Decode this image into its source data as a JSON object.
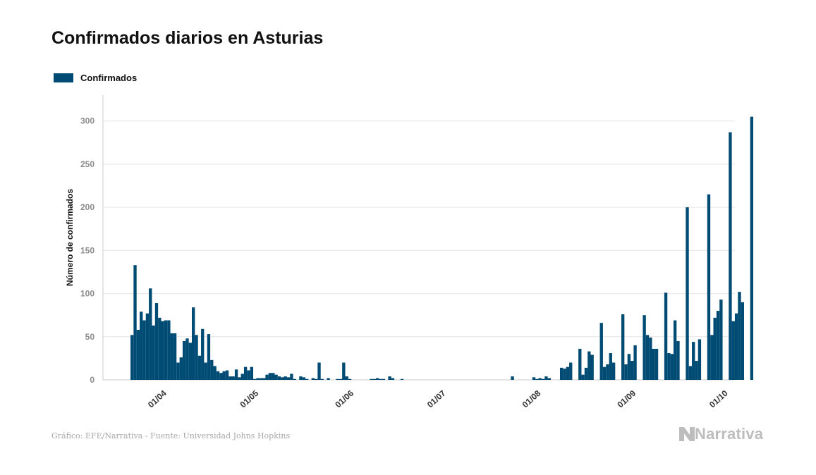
{
  "colors": {
    "bar": "#004b73",
    "grid": "#e6e6e6",
    "axis": "#cccccc",
    "brand": "#bdbdbd"
  },
  "source": "Gráfico: EFE/Narrativa - Fuente: Universidad Johns Hopkins",
  "brand": "Narrativa",
  "chart_data": {
    "type": "bar",
    "title": "Confirmados diarios en Asturias",
    "ylabel": "Número de confirmados",
    "xlabel": "",
    "ylim": [
      0,
      330
    ],
    "yticks": [
      0,
      50,
      100,
      150,
      200,
      250,
      300
    ],
    "grid": true,
    "legend_position": "top-left",
    "start_date": "2020-03-22",
    "xticks": [
      {
        "label": "01/04",
        "date": "2020-04-01"
      },
      {
        "label": "01/05",
        "date": "2020-05-01"
      },
      {
        "label": "01/06",
        "date": "2020-06-01"
      },
      {
        "label": "01/07",
        "date": "2020-07-01"
      },
      {
        "label": "01/08",
        "date": "2020-08-01"
      },
      {
        "label": "01/09",
        "date": "2020-09-01"
      },
      {
        "label": "01/10",
        "date": "2020-10-01"
      }
    ],
    "series": [
      {
        "name": "Confirmados",
        "values": [
          52,
          133,
          58,
          79,
          69,
          77,
          106,
          63,
          89,
          72,
          68,
          69,
          69,
          54,
          54,
          20,
          26,
          45,
          48,
          43,
          84,
          52,
          28,
          59,
          20,
          53,
          23,
          16,
          10,
          8,
          10,
          11,
          4,
          4,
          12,
          3,
          7,
          15,
          11,
          15,
          1,
          2,
          2,
          2,
          6,
          8,
          8,
          6,
          4,
          3,
          4,
          3,
          7,
          1,
          0,
          4,
          3,
          1,
          0,
          2,
          1,
          20,
          1,
          0,
          2,
          0,
          0,
          1,
          1,
          20,
          4,
          1,
          0,
          0,
          0,
          0,
          0,
          0,
          1,
          1,
          2,
          1,
          1,
          0,
          4,
          2,
          0,
          0,
          1,
          0,
          0,
          0,
          0,
          0,
          0,
          0,
          0,
          0,
          0,
          0,
          0,
          0,
          0,
          0,
          0,
          0,
          0,
          0,
          0,
          0,
          0,
          0,
          0,
          0,
          0,
          0,
          0,
          0,
          0,
          0,
          0,
          0,
          0,
          0,
          4,
          0,
          0,
          0,
          0,
          0,
          0,
          3,
          1,
          2,
          1,
          4,
          2,
          0,
          0,
          0,
          14,
          13,
          15,
          20,
          0,
          0,
          36,
          6,
          14,
          33,
          29,
          0,
          0,
          66,
          15,
          18,
          31,
          20,
          0,
          0,
          76,
          18,
          30,
          22,
          40,
          0,
          0,
          75,
          52,
          49,
          36,
          36,
          0,
          0,
          101,
          31,
          30,
          69,
          45,
          0,
          0,
          200,
          16,
          44,
          22,
          47,
          0,
          0,
          215,
          52,
          72,
          80,
          93,
          0,
          0,
          287,
          68,
          77,
          102,
          90,
          0,
          0,
          305
        ]
      }
    ]
  }
}
